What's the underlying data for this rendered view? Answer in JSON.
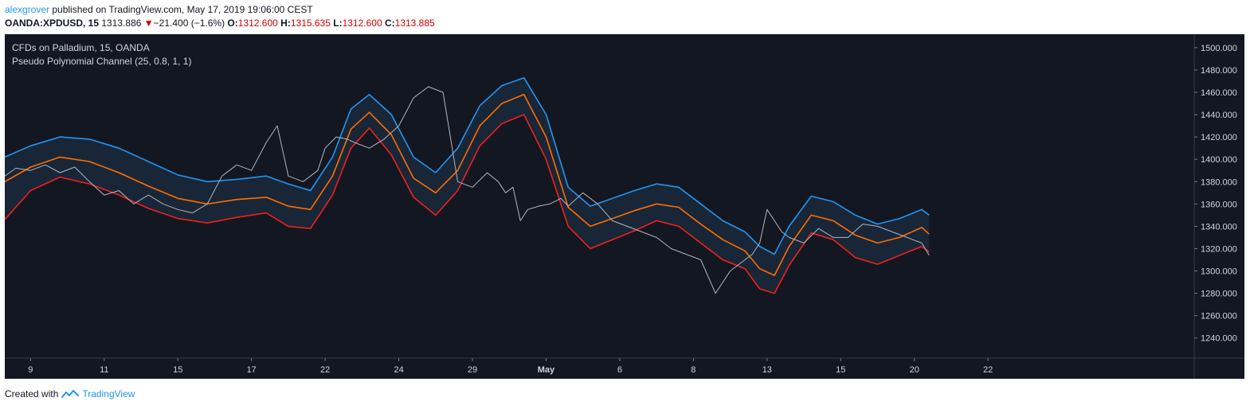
{
  "header": {
    "author": "alexgrover",
    "published_text": " published on TradingView.com, May 17, 2019 19:06:00 CEST",
    "symbol": "OANDA:XPDUSD, 15",
    "last": "1313.886",
    "change_icon": "triangle-down-icon",
    "change": "−21.400 (−1.6%)",
    "o_label": "O:",
    "o_value": "1312.600",
    "h_label": "H:",
    "h_value": "1315.635",
    "l_label": "L:",
    "l_value": "1312.600",
    "c_label": "C:",
    "c_value": "1313.885"
  },
  "footer": {
    "created_with": "Created with",
    "brand": "TradingView",
    "brand_icon": "tradingview-logo-icon"
  },
  "colors": {
    "background": "#131722",
    "upper_band": "#2196f3",
    "middle_line": "#ff6d00",
    "lower_band": "#f0201c",
    "price": "#b2b5be",
    "band_fill": "#1b2a3d",
    "down": "#d50000",
    "axis_text": "#d1d4dc"
  },
  "chart_data": {
    "type": "line",
    "title": "CFDs on Palladium, 15, OANDA",
    "subtitle": "Pseudo Polynomial Channel (25, 0.8, 1, 1)",
    "xlabel": "",
    "ylabel": "",
    "ylim": [
      1222,
      1512
    ],
    "xlim": [
      8.65,
      24.8
    ],
    "y_ticks": [
      "1240.000",
      "1260.000",
      "1280.000",
      "1300.000",
      "1320.000",
      "1340.000",
      "1360.000",
      "1380.000",
      "1400.000",
      "1420.000",
      "1440.000",
      "1460.000",
      "1480.000",
      "1500.000"
    ],
    "x_ticks": [
      {
        "x": 9,
        "label": "9"
      },
      {
        "x": 10,
        "label": "11"
      },
      {
        "x": 11,
        "label": "15"
      },
      {
        "x": 12,
        "label": "17"
      },
      {
        "x": 13,
        "label": "22"
      },
      {
        "x": 14,
        "label": "24"
      },
      {
        "x": 15,
        "label": "29"
      },
      {
        "x": 16,
        "label": "May"
      },
      {
        "x": 17,
        "label": "6"
      },
      {
        "x": 18,
        "label": "8"
      },
      {
        "x": 19,
        "label": "13"
      },
      {
        "x": 20,
        "label": "15"
      },
      {
        "x": 21,
        "label": "20"
      },
      {
        "x": 22,
        "label": "22"
      }
    ],
    "grid": false,
    "legend": "none",
    "series": [
      {
        "role": "price",
        "x": [
          8.65,
          8.8,
          9.0,
          9.2,
          9.4,
          9.6,
          9.8,
          10.0,
          10.2,
          10.4,
          10.6,
          10.8,
          11.0,
          11.2,
          11.4,
          11.6,
          11.8,
          12.0,
          12.2,
          12.35,
          12.5,
          12.7,
          12.9,
          13.0,
          13.15,
          13.3,
          13.4,
          13.6,
          13.8,
          14.0,
          14.2,
          14.4,
          14.6,
          14.8,
          15.0,
          15.2,
          15.35,
          15.45,
          15.55,
          15.65,
          15.75,
          15.9,
          16.05,
          16.2,
          16.3,
          16.5,
          16.7,
          16.9,
          17.1,
          17.3,
          17.5,
          17.7,
          17.9,
          18.1,
          18.3,
          18.5,
          18.7,
          18.8,
          18.9,
          19.0,
          19.1,
          19.2,
          19.3,
          19.5,
          19.7,
          19.9,
          20.1,
          20.3,
          20.5,
          20.7,
          20.9,
          21.1,
          21.2
        ],
        "values": [
          1385,
          1392,
          1390,
          1395,
          1388,
          1393,
          1380,
          1368,
          1372,
          1360,
          1368,
          1360,
          1355,
          1352,
          1360,
          1385,
          1395,
          1390,
          1415,
          1430,
          1385,
          1380,
          1390,
          1410,
          1420,
          1418,
          1415,
          1410,
          1418,
          1430,
          1455,
          1465,
          1460,
          1380,
          1375,
          1388,
          1380,
          1370,
          1375,
          1345,
          1355,
          1358,
          1360,
          1365,
          1358,
          1370,
          1360,
          1345,
          1340,
          1335,
          1330,
          1320,
          1315,
          1310,
          1280,
          1300,
          1310,
          1315,
          1325,
          1355,
          1345,
          1335,
          1330,
          1325,
          1338,
          1330,
          1330,
          1342,
          1340,
          1335,
          1330,
          1325,
          1314
        ]
      },
      {
        "role": "upper",
        "x": [
          8.65,
          9.0,
          9.4,
          9.8,
          10.2,
          10.6,
          11.0,
          11.4,
          11.8,
          12.2,
          12.5,
          12.8,
          13.1,
          13.35,
          13.6,
          13.9,
          14.2,
          14.5,
          14.8,
          15.1,
          15.4,
          15.7,
          16.0,
          16.3,
          16.6,
          16.9,
          17.2,
          17.5,
          17.8,
          18.1,
          18.4,
          18.7,
          18.9,
          19.1,
          19.3,
          19.6,
          19.9,
          20.2,
          20.5,
          20.8,
          21.1,
          21.2
        ],
        "values": [
          1402,
          1412,
          1420,
          1418,
          1410,
          1398,
          1386,
          1380,
          1382,
          1385,
          1378,
          1372,
          1402,
          1445,
          1458,
          1440,
          1402,
          1388,
          1410,
          1448,
          1466,
          1473,
          1440,
          1375,
          1358,
          1365,
          1372,
          1378,
          1375,
          1360,
          1345,
          1335,
          1322,
          1315,
          1340,
          1367,
          1362,
          1350,
          1342,
          1347,
          1355,
          1350
        ]
      },
      {
        "role": "middle",
        "x": [
          8.65,
          9.0,
          9.4,
          9.8,
          10.2,
          10.6,
          11.0,
          11.4,
          11.8,
          12.2,
          12.5,
          12.8,
          13.1,
          13.35,
          13.6,
          13.9,
          14.2,
          14.5,
          14.8,
          15.1,
          15.4,
          15.7,
          16.0,
          16.3,
          16.6,
          16.9,
          17.2,
          17.5,
          17.8,
          18.1,
          18.4,
          18.7,
          18.9,
          19.1,
          19.3,
          19.6,
          19.9,
          20.2,
          20.5,
          20.8,
          21.1,
          21.2
        ],
        "values": [
          1380,
          1393,
          1402,
          1398,
          1388,
          1376,
          1365,
          1360,
          1364,
          1366,
          1358,
          1355,
          1385,
          1427,
          1442,
          1422,
          1383,
          1370,
          1390,
          1430,
          1450,
          1458,
          1420,
          1357,
          1340,
          1347,
          1354,
          1360,
          1357,
          1342,
          1328,
          1318,
          1302,
          1296,
          1322,
          1350,
          1345,
          1332,
          1325,
          1330,
          1339,
          1333
        ]
      },
      {
        "role": "lower",
        "x": [
          8.65,
          9.0,
          9.4,
          9.8,
          10.2,
          10.6,
          11.0,
          11.4,
          11.8,
          12.2,
          12.5,
          12.8,
          13.1,
          13.35,
          13.6,
          13.9,
          14.2,
          14.5,
          14.8,
          15.1,
          15.4,
          15.7,
          16.0,
          16.3,
          16.6,
          16.9,
          17.2,
          17.5,
          17.8,
          18.1,
          18.4,
          18.7,
          18.9,
          19.1,
          19.3,
          19.6,
          19.9,
          20.2,
          20.5,
          20.8,
          21.1,
          21.2
        ],
        "values": [
          1346,
          1372,
          1384,
          1378,
          1368,
          1356,
          1347,
          1343,
          1348,
          1352,
          1340,
          1338,
          1368,
          1410,
          1428,
          1404,
          1366,
          1350,
          1372,
          1412,
          1432,
          1440,
          1400,
          1340,
          1320,
          1328,
          1336,
          1345,
          1340,
          1325,
          1310,
          1302,
          1284,
          1280,
          1305,
          1334,
          1328,
          1312,
          1306,
          1314,
          1322,
          1317
        ]
      }
    ]
  }
}
